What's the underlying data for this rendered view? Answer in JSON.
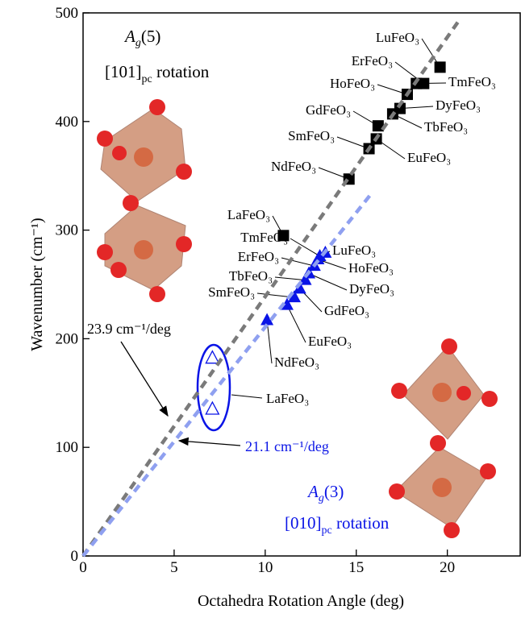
{
  "chart_data": {
    "type": "scatter",
    "xlabel": "Octahedra Rotation Angle (deg)",
    "ylabel": "Wavenumber (cm⁻¹)",
    "xlim": [
      0,
      24
    ],
    "ylim": [
      0,
      500
    ],
    "xticks": [
      0,
      5,
      10,
      15,
      20
    ],
    "yticks": [
      0,
      100,
      200,
      300,
      400,
      500
    ],
    "series": [
      {
        "marker": "square",
        "color": "#000000",
        "x": [
          11.0,
          14.6,
          15.7,
          16.1,
          16.2,
          17.0,
          17.4,
          17.8,
          18.3,
          18.7,
          19.6
        ],
        "values": [
          295,
          347,
          375,
          384,
          396,
          407,
          412,
          425,
          435,
          435,
          450
        ],
        "labels": [
          "LaFeO₃",
          "NdFeO₃",
          "SmFeO₃",
          "EuFeO₃",
          "GdFeO₃",
          "TbFeO₃",
          "DyFeO₃",
          "HoFeO₃",
          "TmFeO₃",
          "ErFeO₃",
          "LuFeO₃"
        ]
      },
      {
        "marker": "triangle",
        "color": "#0a14e6",
        "x": [
          10.1,
          11.2,
          11.6,
          11.9,
          12.2,
          12.4,
          12.7,
          12.9,
          13.0,
          13.3
        ],
        "values": [
          217,
          231,
          238,
          246,
          254,
          260,
          267,
          273,
          276,
          279
        ],
        "labels": [
          "NdFeO₃",
          "EuFeO₃",
          "SmFeO₃",
          "GdFeO₃",
          "TbFeO₃",
          "DyFeO₃",
          "ErFeO₃",
          "HoFeO₃",
          "TmFeO₃",
          "LuFeO₃"
        ]
      },
      {
        "marker": "open-triangle",
        "color": "#0a14e6",
        "x": [
          7.1,
          7.1
        ],
        "values": [
          182,
          135
        ],
        "label": "LaFeO₃"
      },
      {
        "marker": "dashed-line",
        "color": "#7a7a7a",
        "x": [
          0,
          20.6
        ],
        "values": [
          0,
          492
        ]
      },
      {
        "marker": "dashed-line",
        "color": "#8fa0f0",
        "x": [
          0,
          15.8
        ],
        "values": [
          0,
          333
        ]
      }
    ],
    "annotations": {
      "slope_gray": "23.9 cm⁻¹/deg",
      "slope_blue": "21.1 cm⁻¹/deg",
      "mode_gray": [
        "A",
        "g",
        "(5)"
      ],
      "rot_gray": [
        "[101]",
        "pc",
        " rotation"
      ],
      "mode_blue": [
        "A",
        "g",
        "(3)"
      ],
      "rot_blue": [
        "[010]",
        "pc",
        " rotation"
      ]
    }
  }
}
